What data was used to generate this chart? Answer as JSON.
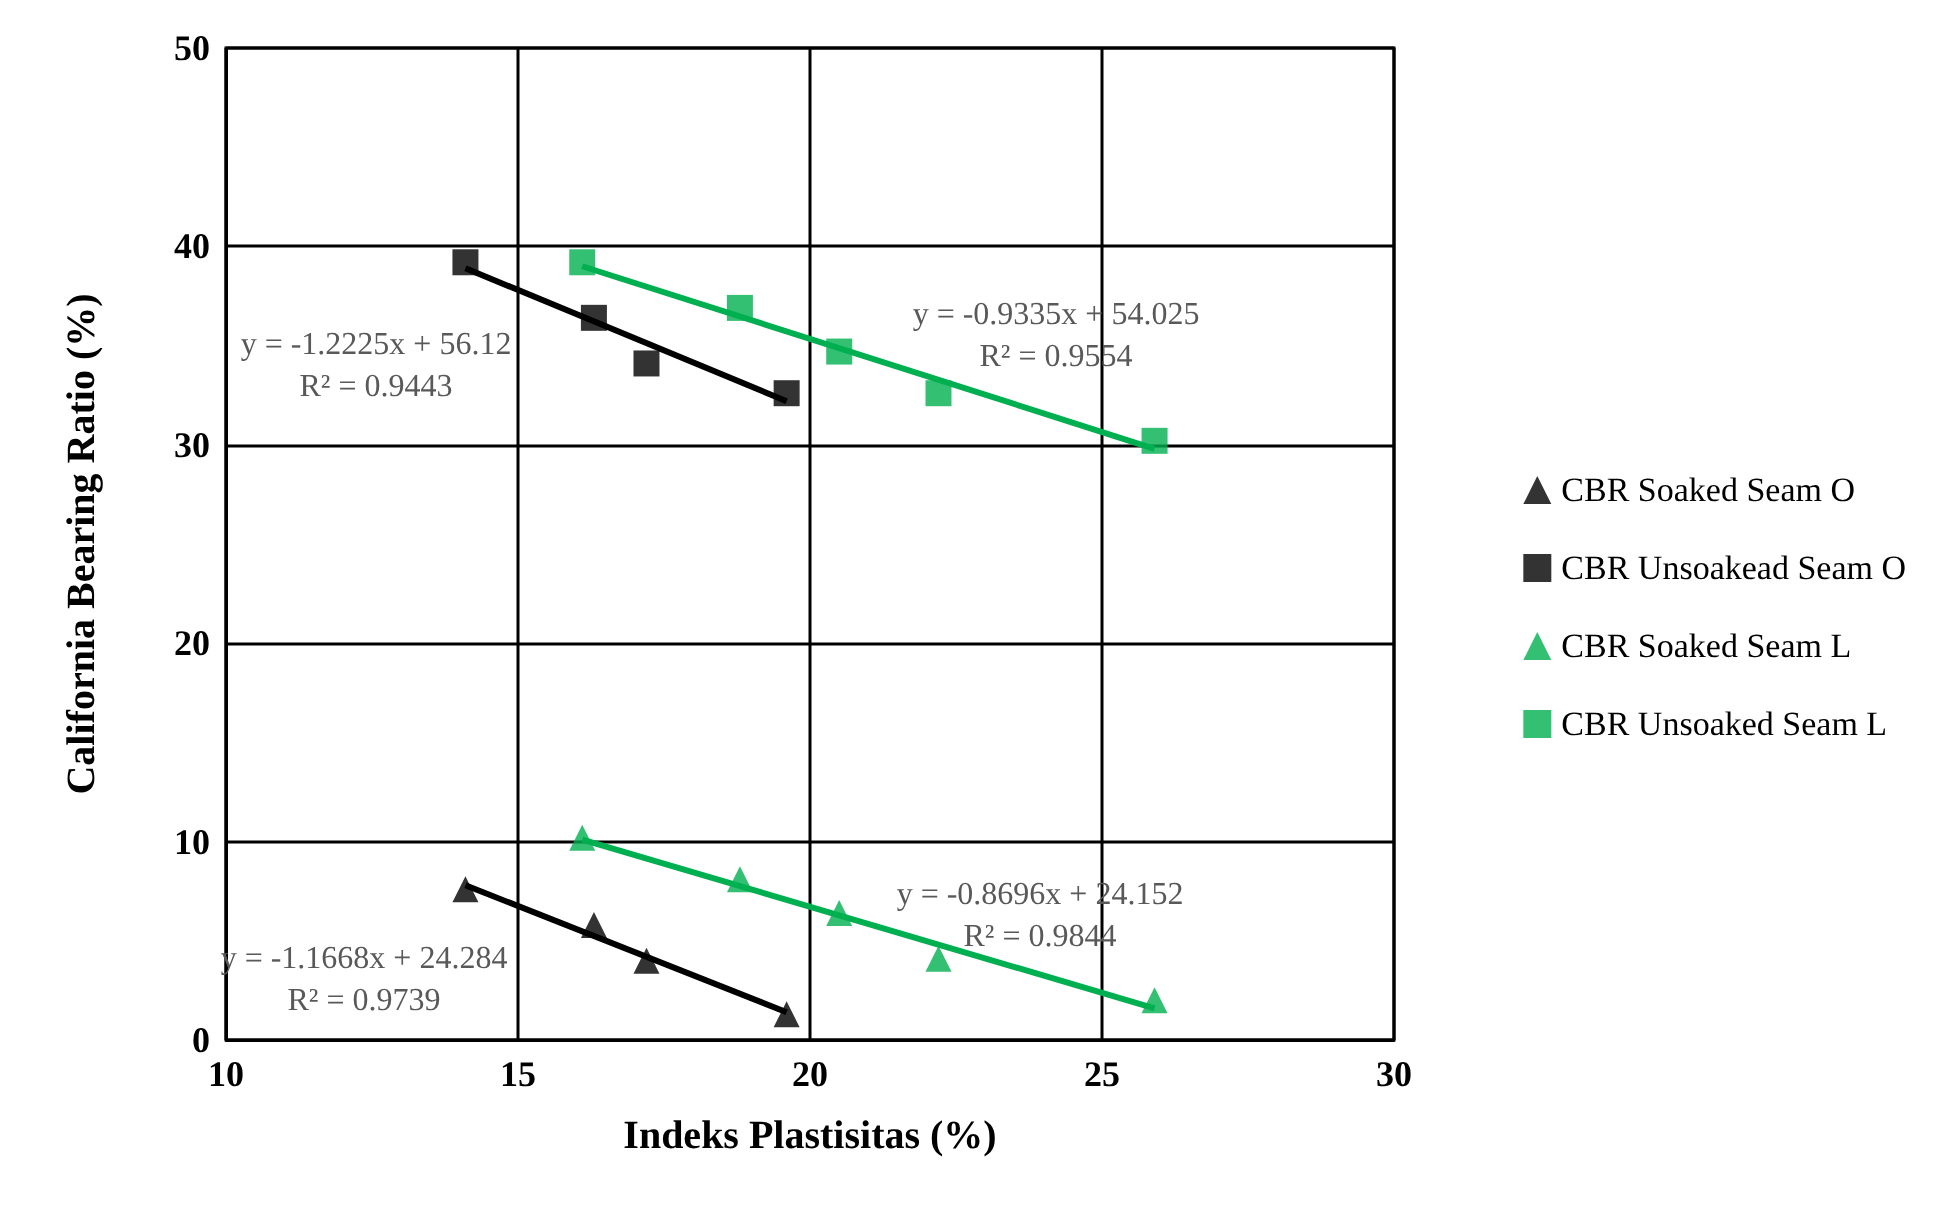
{
  "chart_data": {
    "type": "scatter",
    "xlabel": "Indeks Plastisitas (%)",
    "ylabel": "California Bearing Ratio (%)",
    "xlim": [
      10,
      30
    ],
    "xticks": [
      10,
      15,
      20,
      25,
      30
    ],
    "ylim": [
      0,
      50
    ],
    "yticks": [
      0,
      10,
      20,
      30,
      40,
      50
    ],
    "grid": true,
    "legend": "right",
    "series": [
      {
        "name": "CBR Soaked Seam O",
        "color": "#000000",
        "marker": "triangle",
        "x": [
          14.1,
          16.3,
          17.2,
          19.6
        ],
        "values": [
          7.6,
          5.8,
          4.0,
          1.3
        ]
      },
      {
        "name": "CBR Unsoakead Seam O",
        "color": "#000000",
        "marker": "square",
        "x": [
          14.1,
          16.3,
          17.2,
          19.6
        ],
        "values": [
          39.2,
          36.4,
          34.1,
          32.6
        ]
      },
      {
        "name": "CBR Soaked Seam L",
        "color": "#00b050",
        "marker": "triangle",
        "x": [
          16.1,
          18.8,
          20.5,
          22.2,
          25.9
        ],
        "values": [
          10.2,
          8.1,
          6.4,
          4.1,
          2.0
        ]
      },
      {
        "name": "CBR Unsoaked Seam L",
        "color": "#00b050",
        "marker": "square",
        "x": [
          16.1,
          18.8,
          20.5,
          22.2,
          25.9
        ],
        "values": [
          39.2,
          36.9,
          34.7,
          32.6,
          30.2
        ]
      },
      {
        "type": "line",
        "color": "#000000",
        "marker": "none",
        "x": [
          14.1,
          19.6
        ],
        "values": [
          7.8,
          1.4
        ]
      },
      {
        "type": "line",
        "color": "#000000",
        "marker": "none",
        "x": [
          14.1,
          19.6
        ],
        "values": [
          38.9,
          32.2
        ]
      },
      {
        "type": "line",
        "color": "#00b050",
        "marker": "none",
        "x": [
          16.1,
          25.9
        ],
        "values": [
          10.1,
          1.6
        ]
      },
      {
        "type": "line",
        "color": "#00b050",
        "marker": "none",
        "x": [
          16.1,
          25.9
        ],
        "values": [
          39.0,
          29.8
        ]
      }
    ],
    "annotations": [
      "y = -1.2225x + 56.12\nR² = 0.9443",
      "y = -0.9335x + 54.025\nR² = 0.9554",
      "y = -0.8696x + 24.152\nR² = 0.9844",
      "y = -1.1668x + 24.284\nR² = 0.9739"
    ]
  }
}
